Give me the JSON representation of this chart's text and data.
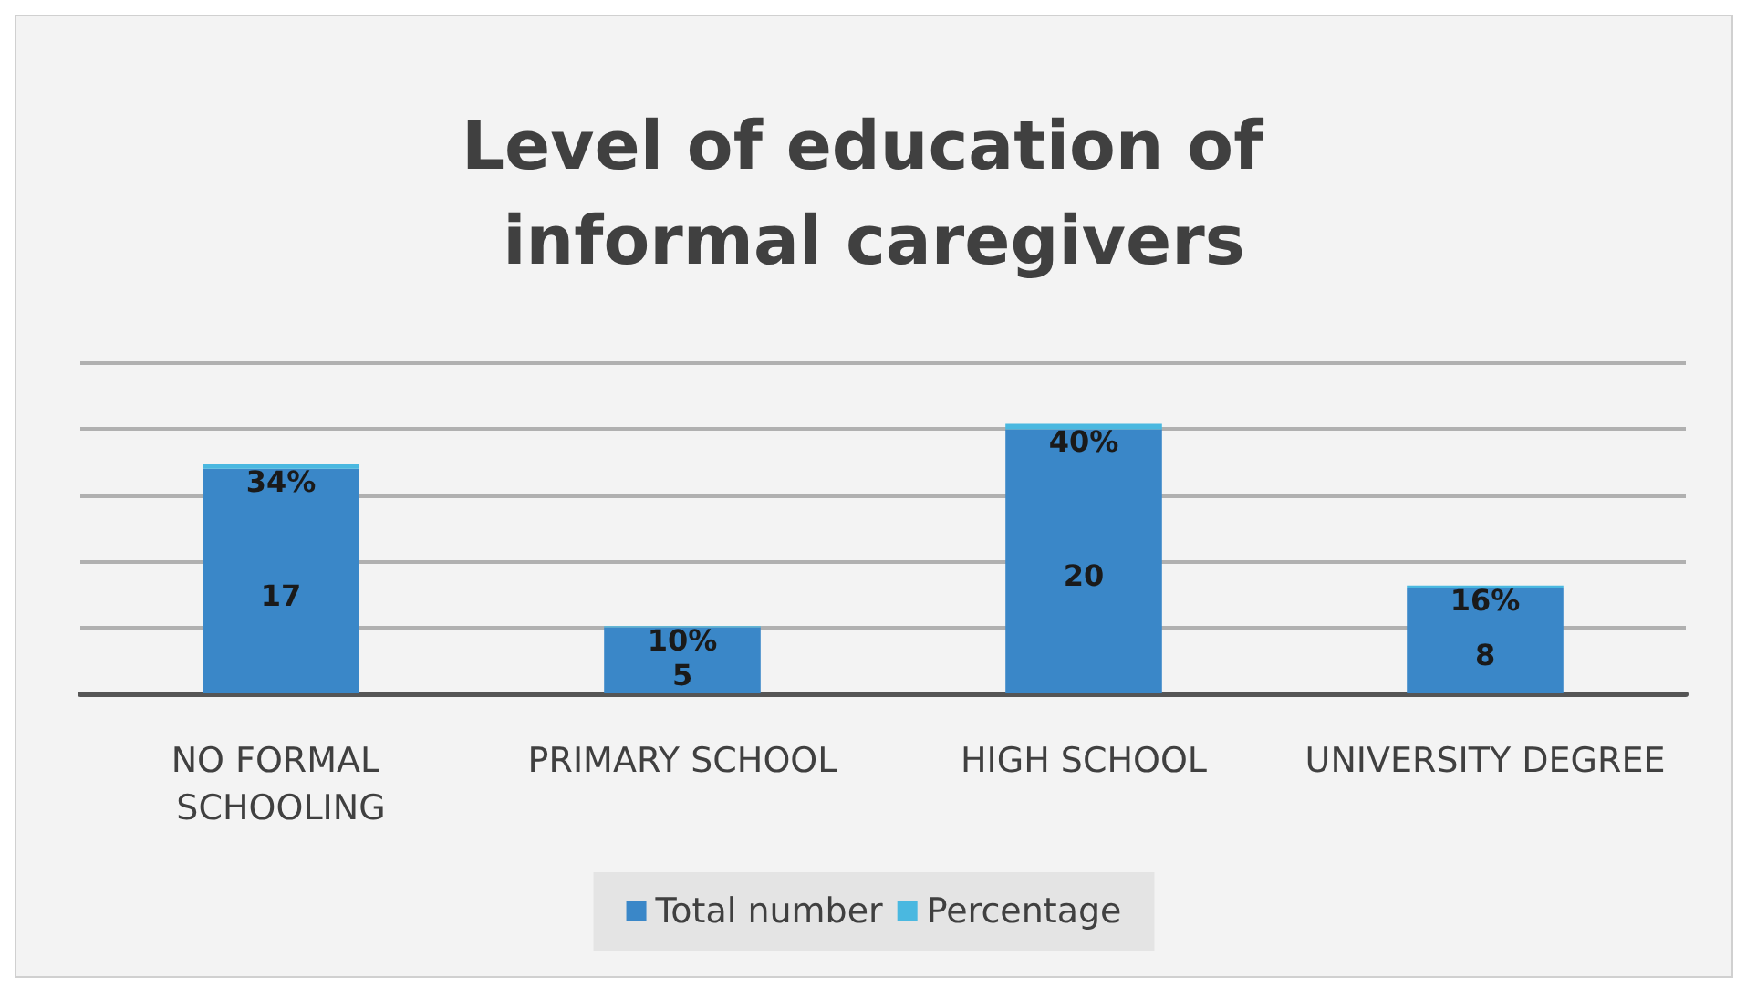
{
  "chart_data": {
    "type": "bar",
    "title": "Level of education of informal caregivers",
    "categories": [
      "NO FORMAL SCHOOLING",
      "PRIMARY SCHOOL",
      "HIGH SCHOOL",
      "UNIVERSITY DEGREE"
    ],
    "stacked": true,
    "series": [
      {
        "name": "Total number",
        "color": "#3a87c8",
        "values": [
          17,
          5,
          20,
          8
        ],
        "value_labels": [
          "17",
          "5",
          "20",
          "8"
        ]
      },
      {
        "name": "Percentage",
        "color": "#4ab8e0",
        "values": [
          0.34,
          0.1,
          0.4,
          0.16
        ],
        "value_labels": [
          "34%",
          "10%",
          "40%",
          "16%"
        ]
      }
    ],
    "ylim": [
      0,
      25
    ],
    "yticks": [
      {
        "value": 0,
        "label": null
      },
      {
        "value": 5,
        "label": null
      },
      {
        "value": 10,
        "label": null
      },
      {
        "value": 15,
        "label": null
      },
      {
        "value": 20,
        "label": null
      },
      {
        "value": 25,
        "label": null
      }
    ],
    "tick_labels": "x",
    "grid": "y",
    "legend": "bottom"
  }
}
